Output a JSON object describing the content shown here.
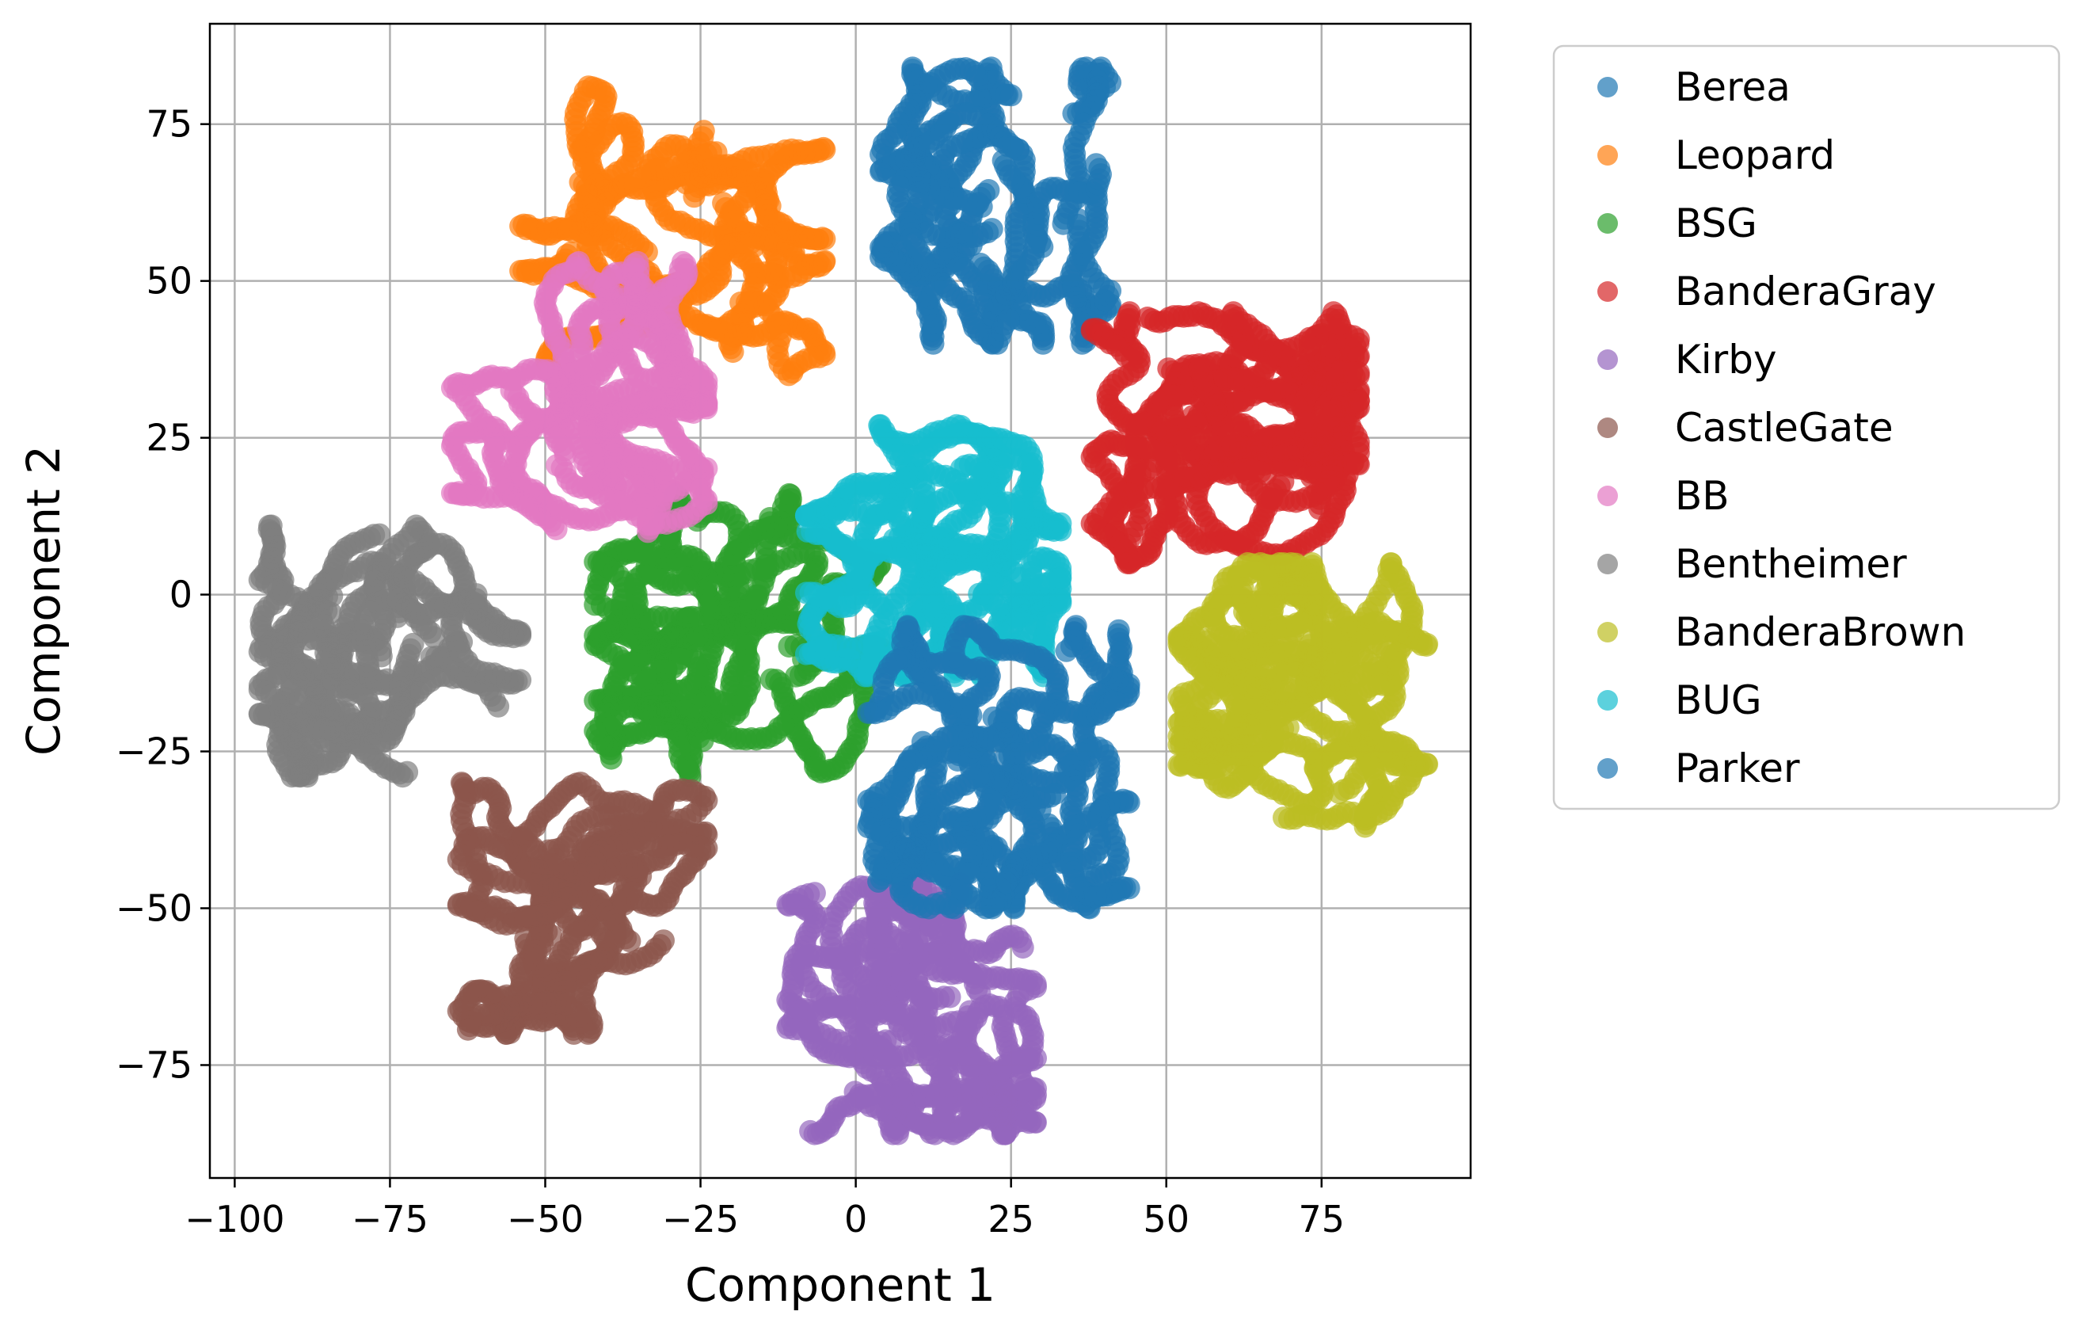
{
  "chart_data": {
    "type": "scatter",
    "title": "",
    "xlabel": "Component 1",
    "ylabel": "Component 2",
    "xlim": [
      -104,
      99
    ],
    "ylim": [
      -93,
      91
    ],
    "xticks": [
      -100,
      -75,
      -50,
      -25,
      0,
      25,
      50,
      75
    ],
    "yticks": [
      -75,
      -50,
      -25,
      0,
      25,
      50,
      75
    ],
    "xtick_labels": [
      "−100",
      "−75",
      "−50",
      "−25",
      "0",
      "25",
      "50",
      "75"
    ],
    "ytick_labels": [
      "−75",
      "−50",
      "−25",
      "0",
      "25",
      "50",
      "75"
    ],
    "grid": true,
    "legend_position": "outside-right-top",
    "marker_alpha": 0.7,
    "series": [
      {
        "name": "Berea",
        "color": "#1f77b4",
        "center": [
          22,
          63
        ],
        "spread": [
          10,
          11
        ],
        "range_x": [
          4,
          41
        ],
        "range_y": [
          40,
          84
        ],
        "n": 700
      },
      {
        "name": "Leopard",
        "color": "#ff7f0e",
        "center": [
          -28,
          62
        ],
        "spread": [
          14,
          9
        ],
        "range_x": [
          -54,
          -5
        ],
        "range_y": [
          35,
          81
        ],
        "n": 700
      },
      {
        "name": "BSG",
        "color": "#2ca02c",
        "center": [
          -22,
          -10
        ],
        "spread": [
          13,
          9
        ],
        "range_x": [
          -42,
          4
        ],
        "range_y": [
          -29,
          16
        ],
        "n": 900
      },
      {
        "name": "BanderaGray",
        "color": "#d62728",
        "center": [
          62,
          26
        ],
        "spread": [
          10,
          8
        ],
        "range_x": [
          38,
          81
        ],
        "range_y": [
          5,
          45
        ],
        "n": 1000
      },
      {
        "name": "Kirby",
        "color": "#9467bd",
        "center": [
          10,
          -68
        ],
        "spread": [
          8,
          9
        ],
        "range_x": [
          -11,
          29
        ],
        "range_y": [
          -86,
          -46
        ],
        "n": 900
      },
      {
        "name": "CastleGate",
        "color": "#8c564b",
        "center": [
          -43,
          -50
        ],
        "spread": [
          9,
          9
        ],
        "range_x": [
          -64,
          -24
        ],
        "range_y": [
          -70,
          -30
        ],
        "n": 800
      },
      {
        "name": "BB",
        "color": "#e377c2",
        "center": [
          -43,
          33
        ],
        "spread": [
          10,
          9
        ],
        "range_x": [
          -65,
          -24
        ],
        "range_y": [
          10,
          53
        ],
        "n": 800
      },
      {
        "name": "Bentheimer",
        "color": "#7f7f7f",
        "center": [
          -75,
          -11
        ],
        "spread": [
          10,
          8
        ],
        "range_x": [
          -96,
          -54
        ],
        "range_y": [
          -29,
          11
        ],
        "n": 800
      },
      {
        "name": "BanderaBrown",
        "color": "#bcbd22",
        "center": [
          71,
          -16
        ],
        "spread": [
          9,
          9
        ],
        "range_x": [
          52,
          92
        ],
        "range_y": [
          -37,
          5
        ],
        "n": 1000
      },
      {
        "name": "BUG",
        "color": "#17becf",
        "center": [
          12,
          7
        ],
        "spread": [
          9,
          9
        ],
        "range_x": [
          -8,
          33
        ],
        "range_y": [
          -13,
          27
        ],
        "n": 900
      },
      {
        "name": "Parker",
        "color": "#1f77b4",
        "center": [
          25,
          -28
        ],
        "spread": [
          9,
          9
        ],
        "range_x": [
          2,
          44
        ],
        "range_y": [
          -50,
          -5
        ],
        "n": 900
      }
    ]
  }
}
